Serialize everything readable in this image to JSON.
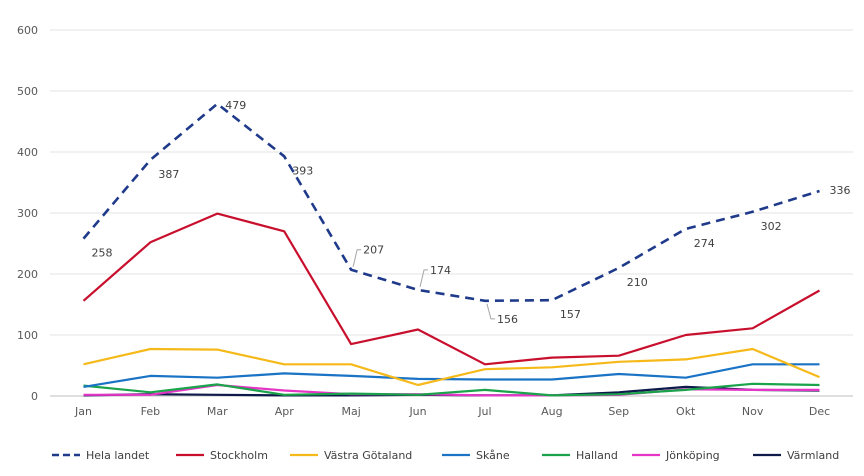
{
  "chart_data": {
    "type": "line",
    "title": "",
    "xlabel": "",
    "ylabel": "",
    "ylim": [
      0,
      600
    ],
    "yticks": [
      0,
      100,
      200,
      300,
      400,
      500,
      600
    ],
    "grid": true,
    "legend_position": "bottom",
    "categories": [
      "Jan",
      "Feb",
      "Mar",
      "Apr",
      "Maj",
      "Jun",
      "Jul",
      "Aug",
      "Sep",
      "Okt",
      "Nov",
      "Dec"
    ],
    "series": [
      {
        "name": "Hela landet",
        "color": "#1f3a8a",
        "dashed": true,
        "labeled": true,
        "values": [
          258,
          387,
          479,
          393,
          207,
          174,
          156,
          157,
          210,
          274,
          302,
          336
        ]
      },
      {
        "name": "Stockholm",
        "color": "#c8102e",
        "dashed": false,
        "values": [
          156,
          252,
          299,
          270,
          85,
          109,
          52,
          63,
          66,
          100,
          111,
          173
        ]
      },
      {
        "name": "Västra Götaland",
        "color": "#f6b91a",
        "dashed": false,
        "values": [
          52,
          77,
          76,
          52,
          52,
          18,
          44,
          47,
          56,
          60,
          77,
          31
        ]
      },
      {
        "name": "Skåne",
        "color": "#1a73c4",
        "dashed": false,
        "values": [
          15,
          33,
          30,
          37,
          33,
          28,
          27,
          27,
          36,
          30,
          52,
          52
        ]
      },
      {
        "name": "Halland",
        "color": "#1aa34a",
        "dashed": false,
        "values": [
          17,
          6,
          19,
          2,
          4,
          2,
          10,
          1,
          3,
          10,
          20,
          18
        ]
      },
      {
        "name": "Jönköping",
        "color": "#e535c7",
        "dashed": false,
        "values": [
          2,
          2,
          18,
          9,
          3,
          3,
          1,
          1,
          2,
          11,
          10,
          10
        ]
      },
      {
        "name": "Värmland",
        "color": "#0d1a4a",
        "dashed": false,
        "values": [
          1,
          3,
          2,
          1,
          1,
          2,
          1,
          1,
          6,
          15,
          10,
          9
        ]
      }
    ]
  }
}
